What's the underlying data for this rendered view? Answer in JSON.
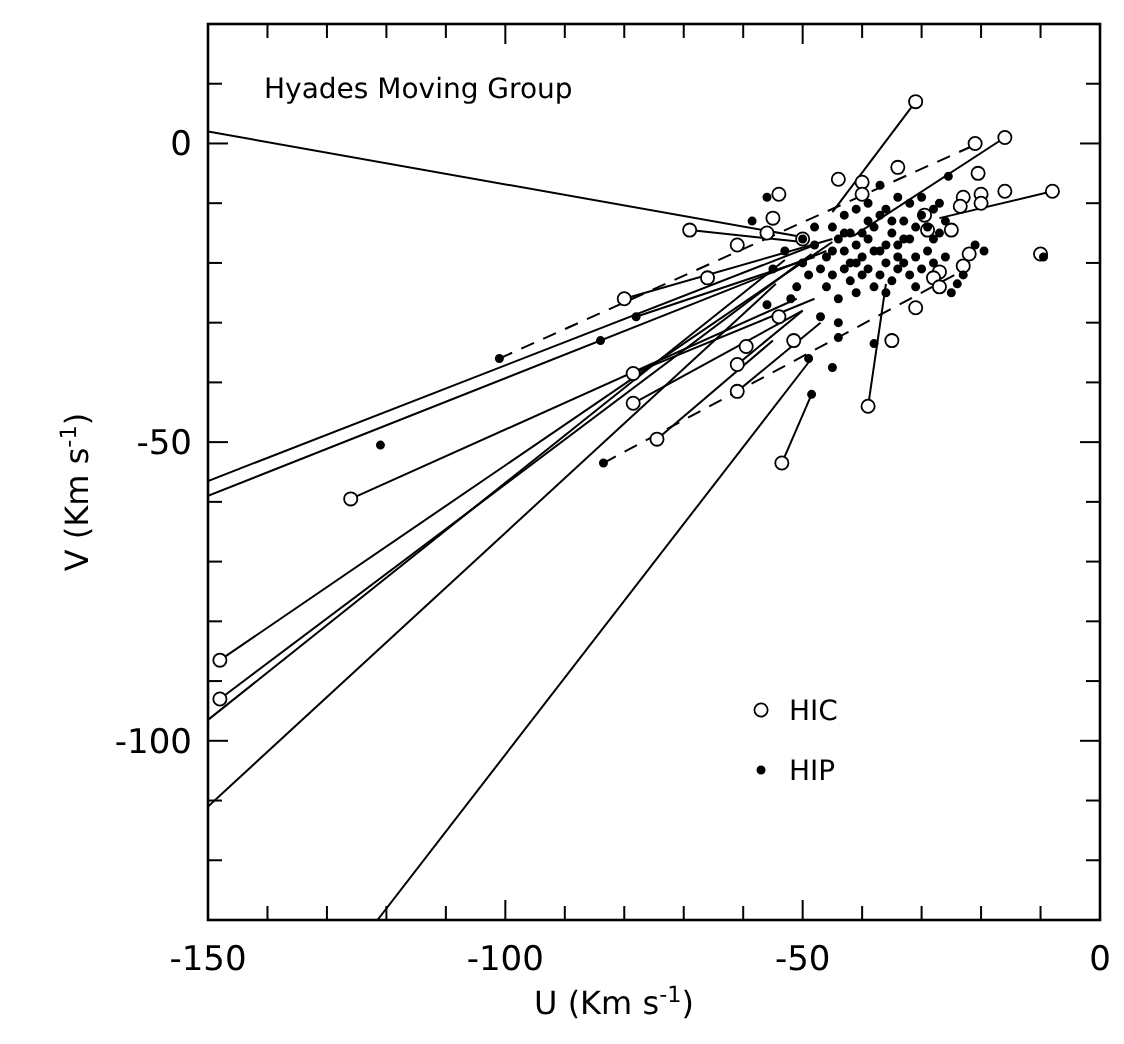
{
  "chart_data": {
    "type": "scatter",
    "title": "Hyades Moving Group",
    "xlabel": "U (Km s$^{-1}$)",
    "ylabel": "V (Km s$^{-1}$)",
    "xlim": [
      -150,
      0
    ],
    "ylim": [
      -130,
      20
    ],
    "xticks": [
      -150,
      {
        "value": -140,
        "label": null
      },
      {
        "value": -130,
        "label": null
      },
      {
        "value": -120,
        "label": null
      },
      {
        "value": -110,
        "label": null
      },
      -100,
      {
        "value": -90,
        "label": null
      },
      {
        "value": -80,
        "label": null
      },
      {
        "value": -70,
        "label": null
      },
      {
        "value": -60,
        "label": null
      },
      -50,
      {
        "value": -40,
        "label": null
      },
      {
        "value": -30,
        "label": null
      },
      {
        "value": -20,
        "label": null
      },
      {
        "value": -10,
        "label": null
      },
      0
    ],
    "yticks": [
      {
        "value": -130,
        "label": null
      },
      {
        "value": -120,
        "label": null
      },
      {
        "value": -110,
        "label": null
      },
      -100,
      {
        "value": -90,
        "label": null
      },
      {
        "value": -80,
        "label": null
      },
      {
        "value": -70,
        "label": null
      },
      {
        "value": -60,
        "label": null
      },
      -50,
      {
        "value": -40,
        "label": null
      },
      {
        "value": -30,
        "label": null
      },
      {
        "value": -20,
        "label": null
      },
      {
        "value": -10,
        "label": null
      },
      0,
      {
        "value": 10,
        "label": null
      },
      {
        "value": 20,
        "label": null
      }
    ],
    "grid": false,
    "legend": "bottom right",
    "series": [
      {
        "name": "HIC",
        "marker": "circle",
        "color": "#ffffff",
        "x": [
          -31,
          -16,
          -21,
          -8,
          -16,
          -20,
          -23,
          -20,
          -23.5,
          -20.5,
          -34,
          -44,
          -40,
          -40,
          -54,
          -55,
          -56,
          -69,
          -61,
          -50,
          -29.5,
          -29,
          -25,
          -22,
          -23,
          -27,
          -28,
          -27,
          -10,
          -31,
          -66,
          -80,
          -54,
          -51.5,
          -35,
          -59.5,
          -61,
          -78.5,
          -61,
          -78.5,
          -39,
          -74.5,
          -53.5,
          -126,
          -148,
          -148
        ],
        "values": [
          7,
          1,
          0,
          -8,
          -8,
          -8.5,
          -9,
          -10,
          -10.5,
          -5,
          -4,
          -6,
          -6.5,
          -8.5,
          -8.5,
          -12.5,
          -15,
          -14.5,
          -17,
          -16,
          -12,
          -14.5,
          -14.5,
          -18.5,
          -20.5,
          -21.5,
          -22.5,
          -24,
          -18.5,
          -27.5,
          -22.5,
          -26,
          -29,
          -33,
          -33,
          -34,
          -37,
          -38.5,
          -41.5,
          -43.5,
          -44,
          -49.5,
          -53.5,
          -59.5,
          -86.5,
          -93
        ]
      },
      {
        "name": "HIP",
        "marker": "circle",
        "color": "#000000",
        "x": [
          -121,
          -101,
          -84,
          -78,
          -83.5,
          -49,
          -48.5,
          -45,
          -44,
          -38,
          -56,
          -58.5,
          -37,
          -25.5,
          -19.5,
          -24,
          -9.5,
          -45,
          -44,
          -43,
          -42,
          -41,
          -40,
          -39,
          -38,
          -37,
          -36,
          -35,
          -34,
          -33,
          -32,
          -31,
          -30,
          -29,
          -28,
          -27,
          -26,
          -46,
          -47,
          -48,
          -49,
          -50,
          -51,
          -52,
          -46,
          -45,
          -44,
          -43,
          -42,
          -41,
          -40,
          -39,
          -38,
          -37,
          -36,
          -35,
          -34,
          -33,
          -32,
          -31,
          -30,
          -29,
          -28,
          -27,
          -43,
          -41,
          -39,
          -36,
          -34,
          -32,
          -30,
          -48,
          -50,
          -53,
          -55,
          -56,
          -47,
          -44,
          -42,
          -40,
          -38,
          -36,
          -34,
          -33,
          -41,
          -39,
          -45,
          -43,
          -37,
          -35,
          -31,
          -28,
          -26,
          -25,
          -23,
          -21
        ],
        "values": [
          -50.5,
          -36,
          -33,
          -29,
          -53.5,
          -36,
          -42,
          -37.5,
          -32.5,
          -33.5,
          -9,
          -13,
          -7,
          -5.5,
          -18,
          -23.5,
          -19,
          -14,
          -16,
          -18,
          -15,
          -17,
          -19,
          -16,
          -14,
          -18,
          -20,
          -15,
          -17,
          -13,
          -16,
          -19,
          -12,
          -14,
          -11,
          -10,
          -13,
          -19,
          -21,
          -17,
          -22,
          -20,
          -24,
          -26,
          -24,
          -22,
          -26,
          -21,
          -23,
          -25,
          -22,
          -21,
          -24,
          -22,
          -25,
          -23,
          -21,
          -20,
          -22,
          -24,
          -21,
          -18,
          -16,
          -15,
          -12,
          -11,
          -10,
          -11,
          -9,
          -10,
          -9,
          -14,
          -16,
          -18,
          -21,
          -27,
          -29,
          -30,
          -20,
          -15,
          -18,
          -17,
          -19,
          -16,
          -20,
          -13,
          -18,
          -15,
          -12,
          -13,
          -14,
          -20,
          -19,
          -25,
          -22,
          -17
        ]
      },
      {
        "type": "line",
        "line_style": "solid",
        "color": "#000000",
        "x": [
          -150,
          -51
        ],
        "values": [
          2,
          -15.5
        ]
      },
      {
        "type": "line",
        "line_style": "solid",
        "color": "#000000",
        "x": [
          -69,
          -50
        ],
        "values": [
          -14.5,
          -16.5
        ]
      },
      {
        "type": "line",
        "line_style": "solid",
        "color": "#000000",
        "x": [
          -31,
          -45
        ],
        "values": [
          7,
          -11.5
        ]
      },
      {
        "type": "line",
        "line_style": "solid",
        "color": "#000000",
        "x": [
          -16,
          -41.5
        ],
        "values": [
          1,
          -15.5
        ]
      },
      {
        "type": "line",
        "line_style": "solid",
        "color": "#000000",
        "x": [
          -8,
          -27
        ],
        "values": [
          -8,
          -12.5
        ]
      },
      {
        "type": "line",
        "line_style": "solid",
        "color": "#000000",
        "x": [
          -39,
          -36
        ],
        "values": [
          -44,
          -23.5
        ]
      },
      {
        "type": "line",
        "line_style": "solid",
        "color": "#000000",
        "x": [
          -53.5,
          -48.5
        ],
        "values": [
          -53.5,
          -42
        ]
      },
      {
        "type": "line",
        "line_style": "solid",
        "color": "#000000",
        "x": [
          -121.5,
          -48.5
        ],
        "values": [
          -130,
          -36
        ]
      },
      {
        "type": "line",
        "line_style": "solid",
        "color": "#000000",
        "x": [
          -148,
          -45
        ],
        "values": [
          -86.5,
          -16.5
        ]
      },
      {
        "type": "line",
        "line_style": "solid",
        "color": "#000000",
        "x": [
          -148,
          -48.5
        ],
        "values": [
          -93,
          -18.5
        ]
      },
      {
        "type": "line",
        "line_style": "solid",
        "color": "#000000",
        "x": [
          -150,
          -53
        ],
        "values": [
          -96.5,
          -19.5
        ]
      },
      {
        "type": "line",
        "line_style": "solid",
        "color": "#000000",
        "x": [
          -150,
          -54.5
        ],
        "values": [
          -111,
          -23.5
        ]
      },
      {
        "type": "line",
        "line_style": "solid",
        "color": "#000000",
        "x": [
          -150,
          -48
        ],
        "values": [
          -56.5,
          -17
        ]
      },
      {
        "type": "line",
        "line_style": "solid",
        "color": "#000000",
        "x": [
          -150,
          -46
        ],
        "values": [
          -59,
          -18
        ]
      },
      {
        "type": "line",
        "line_style": "solid",
        "color": "#000000",
        "x": [
          -126,
          -51
        ],
        "values": [
          -59.5,
          -26
        ]
      },
      {
        "type": "line",
        "line_style": "solid",
        "color": "#000000",
        "x": [
          -78.5,
          -48
        ],
        "values": [
          -38.5,
          -26
        ]
      },
      {
        "type": "line",
        "line_style": "solid",
        "color": "#000000",
        "x": [
          -78.5,
          -50
        ],
        "values": [
          -43.5,
          -28
        ]
      },
      {
        "type": "line",
        "line_style": "solid",
        "color": "#000000",
        "x": [
          -80,
          -45
        ],
        "values": [
          -26,
          -16
        ]
      },
      {
        "type": "line",
        "line_style": "solid",
        "color": "#000000",
        "x": [
          -78,
          -48
        ],
        "values": [
          -29,
          -19
        ]
      },
      {
        "type": "line",
        "line_style": "solid",
        "color": "#000000",
        "x": [
          -61,
          -50
        ],
        "values": [
          -37,
          -28
        ]
      },
      {
        "type": "line",
        "line_style": "solid",
        "color": "#000000",
        "x": [
          -61,
          -47
        ],
        "values": [
          -41.5,
          -30
        ]
      },
      {
        "type": "line",
        "line_style": "solid",
        "color": "#000000",
        "x": [
          -74.5,
          -55
        ],
        "values": [
          -49.5,
          -33
        ]
      },
      {
        "type": "line",
        "line_style": "dashed",
        "color": "#000000",
        "x": [
          -83.5,
          -23.5
        ],
        "values": [
          -53.5,
          -21.5
        ]
      },
      {
        "type": "line",
        "line_style": "dashed",
        "color": "#000000",
        "x": [
          -101,
          -20.5
        ],
        "values": [
          -36,
          0
        ]
      }
    ]
  }
}
